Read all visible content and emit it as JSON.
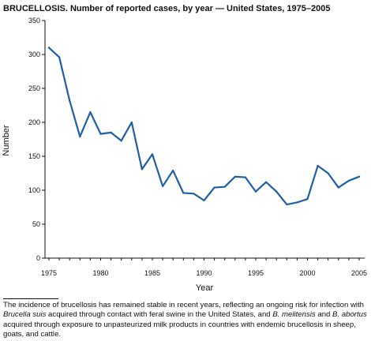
{
  "title": "BRUCELLOSIS. Number of reported cases, by year — United States, 1975–2005",
  "chart_data": {
    "type": "line",
    "xlabel": "Year",
    "ylabel": "Number",
    "xlim": [
      1975,
      2005
    ],
    "ylim": [
      0,
      350
    ],
    "xticks": [
      1975,
      1980,
      1985,
      1990,
      1995,
      2000,
      2005
    ],
    "yticks": [
      0,
      50,
      100,
      150,
      200,
      250,
      300,
      350
    ],
    "grid": false,
    "series": [
      {
        "color": "#1f5fa8",
        "x": [
          1975,
          1976,
          1977,
          1978,
          1979,
          1980,
          1981,
          1982,
          1983,
          1984,
          1985,
          1986,
          1987,
          1988,
          1989,
          1990,
          1991,
          1992,
          1993,
          1994,
          1995,
          1996,
          1997,
          1998,
          1999,
          2000,
          2001,
          2002,
          2003,
          2004,
          2005
        ],
        "values": [
          310,
          296,
          232,
          179,
          215,
          183,
          185,
          173,
          200,
          131,
          153,
          106,
          129,
          96,
          95,
          85,
          104,
          105,
          120,
          119,
          98,
          112,
          98,
          79,
          82,
          87,
          136,
          125,
          104,
          114,
          120
        ]
      }
    ]
  },
  "footnote": {
    "text_1": "The incidence of brucellosis has remained stable in recent years, reflecting an ongoing risk for infection with ",
    "italic_1": "Brucella suis",
    "text_2": " acquired through contact with feral swine in the United States, and ",
    "italic_2": "B. melitensis",
    "text_3": " and ",
    "italic_3": "B. abortus",
    "text_4": " acquired through exposure to unpasteurized milk products in countries with endemic brucellosis in sheep, goats, and cattle."
  }
}
